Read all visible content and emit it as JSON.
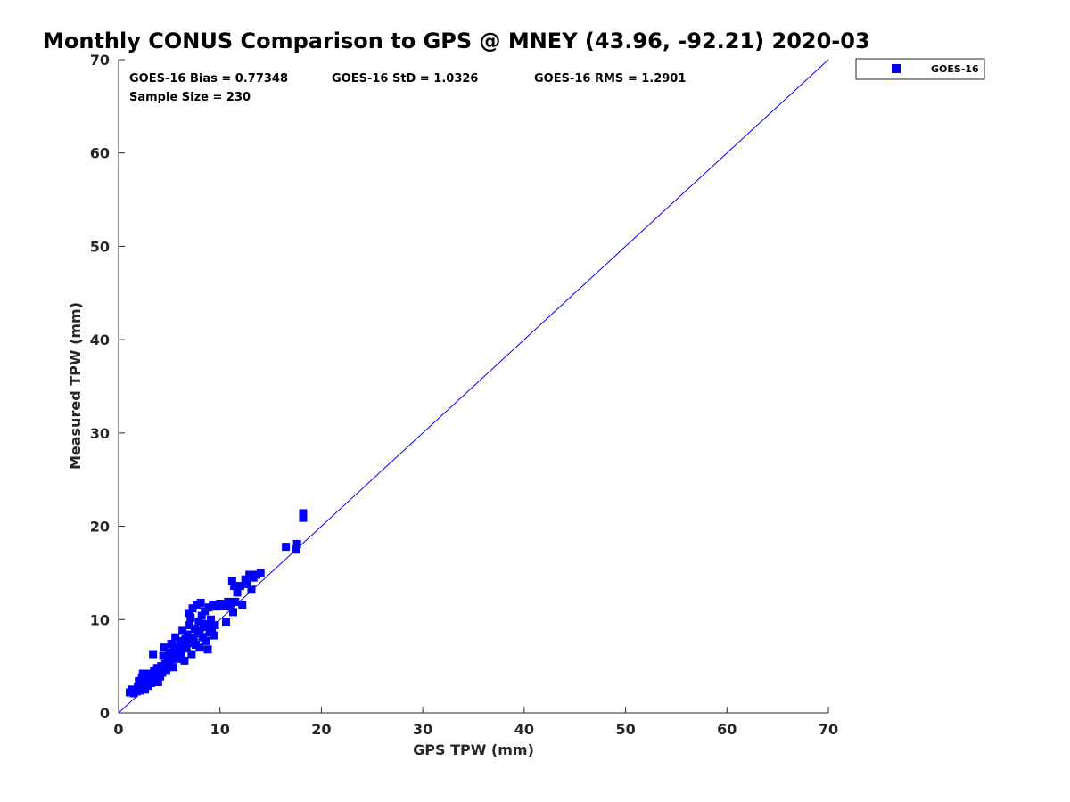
{
  "chart_data": {
    "type": "scatter",
    "title": "Monthly CONUS Comparison to GPS @ MNEY (43.96, -92.21) 2020-03",
    "xlabel": "GPS TPW (mm)",
    "ylabel": "Measured TPW (mm)",
    "xlim": [
      0,
      70
    ],
    "ylim": [
      0,
      70
    ],
    "xticks": [
      0,
      10,
      20,
      30,
      40,
      50,
      60,
      70
    ],
    "yticks": [
      0,
      10,
      20,
      30,
      40,
      50,
      60,
      70
    ],
    "grid": false,
    "legend_position": "outside-top-right",
    "reference_line": {
      "x": [
        0,
        70
      ],
      "y": [
        0,
        70
      ],
      "color": "#0000ff"
    },
    "series": [
      {
        "name": "GOES-16",
        "color": "#0000ff",
        "marker": "square",
        "points": [
          [
            1.1,
            2.2
          ],
          [
            1.3,
            2.5
          ],
          [
            1.5,
            2.1
          ],
          [
            1.6,
            2.4
          ],
          [
            1.8,
            2.3
          ],
          [
            1.9,
            2.8
          ],
          [
            2.0,
            3.4
          ],
          [
            2.1,
            2.4
          ],
          [
            2.2,
            3.0
          ],
          [
            2.3,
            3.8
          ],
          [
            2.3,
            2.6
          ],
          [
            2.4,
            4.2
          ],
          [
            2.5,
            3.1
          ],
          [
            2.6,
            2.5
          ],
          [
            2.7,
            3.5
          ],
          [
            2.8,
            4.0
          ],
          [
            2.9,
            2.9
          ],
          [
            3.0,
            3.6
          ],
          [
            3.1,
            4.2
          ],
          [
            3.2,
            3.2
          ],
          [
            3.3,
            3.9
          ],
          [
            3.3,
            3.3
          ],
          [
            3.4,
            6.3
          ],
          [
            3.5,
            4.5
          ],
          [
            3.6,
            3.6
          ],
          [
            3.7,
            4.0
          ],
          [
            3.8,
            4.8
          ],
          [
            3.9,
            3.3
          ],
          [
            4.0,
            4.4
          ],
          [
            4.1,
            3.9
          ],
          [
            4.2,
            5.0
          ],
          [
            4.3,
            4.3
          ],
          [
            4.4,
            6.1
          ],
          [
            4.5,
            7.0
          ],
          [
            4.6,
            5.2
          ],
          [
            4.7,
            4.6
          ],
          [
            4.8,
            5.8
          ],
          [
            4.9,
            4.9
          ],
          [
            5.0,
            6.5
          ],
          [
            5.1,
            5.3
          ],
          [
            5.2,
            7.4
          ],
          [
            5.3,
            5.9
          ],
          [
            5.4,
            4.9
          ],
          [
            5.5,
            6.8
          ],
          [
            5.6,
            8.1
          ],
          [
            5.7,
            6.3
          ],
          [
            5.8,
            5.8
          ],
          [
            5.9,
            7.1
          ],
          [
            6.0,
            6.6
          ],
          [
            6.1,
            7.7
          ],
          [
            6.2,
            6.1
          ],
          [
            6.3,
            8.8
          ],
          [
            6.4,
            7.2
          ],
          [
            6.5,
            5.6
          ],
          [
            6.6,
            7.9
          ],
          [
            6.7,
            6.9
          ],
          [
            6.8,
            8.4
          ],
          [
            6.9,
            10.7
          ],
          [
            7.0,
            7.5
          ],
          [
            7.0,
            9.4
          ],
          [
            7.1,
            10.2
          ],
          [
            7.2,
            6.3
          ],
          [
            7.3,
            11.2
          ],
          [
            7.4,
            8.0
          ],
          [
            7.5,
            9.0
          ],
          [
            7.6,
            7.3
          ],
          [
            7.7,
            11.6
          ],
          [
            7.8,
            8.5
          ],
          [
            7.9,
            9.8
          ],
          [
            8.0,
            7.0
          ],
          [
            8.0,
            8.8
          ],
          [
            8.1,
            11.8
          ],
          [
            8.2,
            10.4
          ],
          [
            8.3,
            8.1
          ],
          [
            8.4,
            9.2
          ],
          [
            8.5,
            10.9
          ],
          [
            8.6,
            7.7
          ],
          [
            8.7,
            9.5
          ],
          [
            8.8,
            6.8
          ],
          [
            8.9,
            11.3
          ],
          [
            9.0,
            8.6
          ],
          [
            9.1,
            10.0
          ],
          [
            9.2,
            9.1
          ],
          [
            9.3,
            11.6
          ],
          [
            9.4,
            8.3
          ],
          [
            9.5,
            9.4
          ],
          [
            9.7,
            11.4
          ],
          [
            10.0,
            11.7
          ],
          [
            10.3,
            11.5
          ],
          [
            10.6,
            9.7
          ],
          [
            10.8,
            11.9
          ],
          [
            11.0,
            11.4
          ],
          [
            11.2,
            14.1
          ],
          [
            11.3,
            10.8
          ],
          [
            11.4,
            13.6
          ],
          [
            11.5,
            11.9
          ],
          [
            11.7,
            12.9
          ],
          [
            12.0,
            13.6
          ],
          [
            12.2,
            11.6
          ],
          [
            12.5,
            14.3
          ],
          [
            12.7,
            13.8
          ],
          [
            12.9,
            14.8
          ],
          [
            13.1,
            13.2
          ],
          [
            13.3,
            14.5
          ],
          [
            13.6,
            14.8
          ],
          [
            14.0,
            15.0
          ],
          [
            16.5,
            17.8
          ],
          [
            17.5,
            17.5
          ],
          [
            17.6,
            18.1
          ],
          [
            18.2,
            20.9
          ],
          [
            18.2,
            21.4
          ]
        ]
      }
    ],
    "stats": {
      "bias": "GOES-16 Bias = 0.77348",
      "std": "GOES-16 StD = 1.0326",
      "rms": "GOES-16 RMS = 1.2901",
      "sample": "Sample Size = 230"
    }
  }
}
